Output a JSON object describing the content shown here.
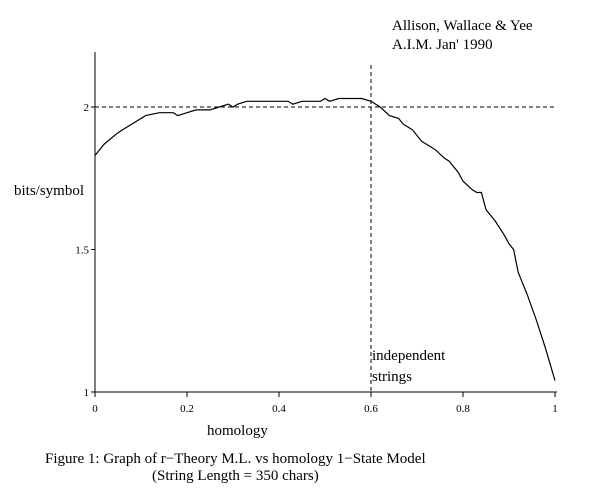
{
  "chart_data": {
    "type": "line",
    "credit_line1": "Allison, Wallace & Yee",
    "credit_line2": "A.I.M. Jan' 1990",
    "ylabel": "bits/symbol",
    "xlabel": "homology",
    "annotation_line1": "independent",
    "annotation_line2": "strings",
    "caption_line1": "Figure 1: Graph of r−Theory M.L. vs homology  1−State Model",
    "caption_line2": "(String Length = 350 chars)",
    "xlim": [
      0,
      1
    ],
    "ylim": [
      1,
      2.2
    ],
    "x_ticks": [
      "0",
      "0.2",
      "0.4",
      "0.6",
      "0.8",
      "1"
    ],
    "x_tick_values": [
      0,
      0.2,
      0.4,
      0.6,
      0.8,
      1
    ],
    "y_ticks": [
      "1",
      "1.5",
      "2"
    ],
    "y_tick_values": [
      1,
      1.5,
      2
    ],
    "reference_y": 2,
    "reference_x": 0.6,
    "grid": false,
    "series": [
      {
        "x": [
          0,
          0.02,
          0.05,
          0.08,
          0.11,
          0.14,
          0.17,
          0.18,
          0.2,
          0.22,
          0.25,
          0.27,
          0.29,
          0.3,
          0.31,
          0.33,
          0.35,
          0.38,
          0.42,
          0.43,
          0.45,
          0.47,
          0.49,
          0.5,
          0.51,
          0.53,
          0.55,
          0.58,
          0.6,
          0.62,
          0.64,
          0.66,
          0.67,
          0.69,
          0.71,
          0.73,
          0.74,
          0.76,
          0.77,
          0.79,
          0.8,
          0.82,
          0.83,
          0.84,
          0.85,
          0.87,
          0.89,
          0.9,
          0.91,
          0.92,
          0.93,
          0.94,
          0.96,
          0.98,
          1.0
        ],
        "y": [
          1.83,
          1.87,
          1.91,
          1.94,
          1.97,
          1.98,
          1.98,
          1.97,
          1.98,
          1.99,
          1.99,
          2.0,
          2.01,
          2.0,
          2.01,
          2.02,
          2.02,
          2.02,
          2.02,
          2.01,
          2.02,
          2.02,
          2.02,
          2.03,
          2.02,
          2.03,
          2.03,
          2.03,
          2.02,
          2.0,
          1.97,
          1.96,
          1.94,
          1.92,
          1.88,
          1.86,
          1.85,
          1.82,
          1.81,
          1.77,
          1.74,
          1.71,
          1.7,
          1.7,
          1.64,
          1.6,
          1.55,
          1.52,
          1.5,
          1.42,
          1.38,
          1.34,
          1.25,
          1.15,
          1.04
        ]
      }
    ]
  }
}
